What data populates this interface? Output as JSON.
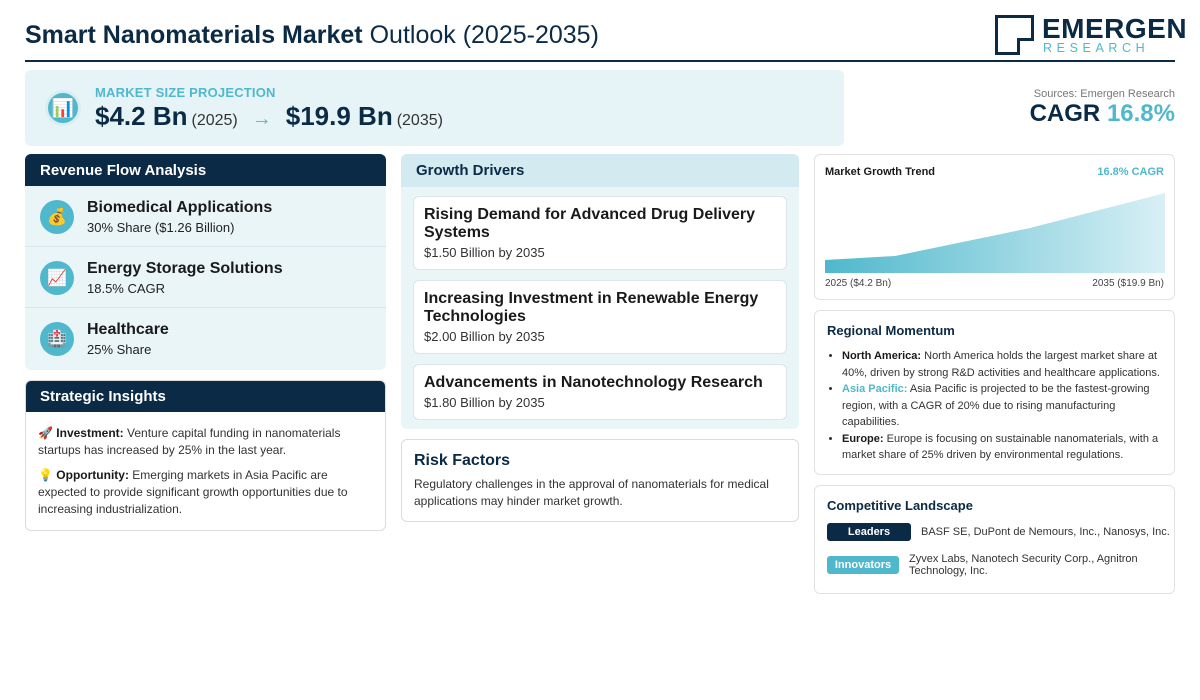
{
  "header": {
    "title_bold": "Smart Nanomaterials Market",
    "title_rest": "Outlook (2025-2035)",
    "logo_name": "EMERGEN",
    "logo_sub": "RESEARCH"
  },
  "projection": {
    "icon": "bar-chart-icon",
    "label": "MARKET SIZE PROJECTION",
    "start_value": "$4.2 Bn",
    "start_year": "(2025)",
    "arrow": "→",
    "end_value": "$19.9 Bn",
    "end_year": "(2035)"
  },
  "sources": "Sources: Emergen Research",
  "cagr": {
    "label": "CAGR",
    "value": "16.8%"
  },
  "revenue_flow": {
    "title": "Revenue Flow Analysis",
    "items": [
      {
        "icon": "money-bag-icon",
        "glyph": "💰",
        "title": "Biomedical Applications",
        "sub": "30% Share ($1.26 Billion)"
      },
      {
        "icon": "trend-up-icon",
        "glyph": "📈",
        "title": "Energy Storage Solutions",
        "sub": "18.5% CAGR"
      },
      {
        "icon": "hospital-icon",
        "glyph": "🏥",
        "title": "Healthcare",
        "sub": "25% Share"
      }
    ]
  },
  "insights": {
    "title": "Strategic Insights",
    "items": [
      {
        "glyph": "🚀",
        "label": "Investment:",
        "text": "Venture capital funding in nanomaterials startups has increased by 25% in the last year."
      },
      {
        "glyph": "💡",
        "label": "Opportunity:",
        "text": "Emerging markets in Asia Pacific are expected to provide significant growth opportunities due to increasing industrialization."
      }
    ]
  },
  "drivers": {
    "title": "Growth Drivers",
    "items": [
      {
        "title": "Rising Demand for Advanced Drug Delivery Systems",
        "value": "$1.50 Billion by 2035"
      },
      {
        "title": "Increasing Investment in Renewable Energy Technologies",
        "value": "$2.00 Billion by 2035"
      },
      {
        "title": "Advancements in Nanotechnology Research",
        "value": "$1.80 Billion by 2035"
      }
    ]
  },
  "risk": {
    "title": "Risk Factors",
    "text": "Regulatory challenges in the approval of nanomaterials for medical applications may hinder market growth."
  },
  "trend": {
    "title": "Market Growth Trend",
    "cagr": "16.8% CAGR",
    "start_label": "2025 ($4.2 Bn)",
    "end_label": "2035 ($19.9 Bn)",
    "gradient_start": "#4fb8cc",
    "gradient_end": "#d8f0f5"
  },
  "regional": {
    "title": "Regional Momentum",
    "items": [
      {
        "label": "North America:",
        "text": "North America holds the largest market share at 40%, driven by strong R&D activities and healthcare applications."
      },
      {
        "label": "Asia Pacific:",
        "text": "Asia Pacific is projected to be the fastest-growing region, with a CAGR of 20% due to rising manufacturing capabilities."
      },
      {
        "label": "Europe:",
        "text": "Europe is focusing on sustainable nanomaterials, with a market share of 25% driven by environmental regulations."
      }
    ]
  },
  "competitive": {
    "title": "Competitive Landscape",
    "leaders_label": "Leaders",
    "leaders_text": "BASF SE, DuPont de Nemours, Inc., Nanosys, Inc.",
    "innovators_label": "Innovators",
    "innovators_text": "Zyvex Labs, Nanotech Security Corp., Agnitron Technology, Inc."
  },
  "colors": {
    "navy": "#0b2a45",
    "teal": "#4fb8cc",
    "panel": "#eaf5f7"
  }
}
